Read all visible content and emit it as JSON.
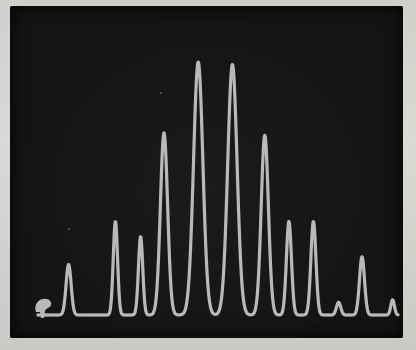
{
  "scene": {
    "subject": "oscilloscope-trace",
    "trace_color": "#b9b9b9",
    "screen_color": "#141414",
    "frame_color": "#d4d4d0"
  },
  "trace": {
    "baseline": 0.0,
    "peaks": [
      {
        "pos": 0.085,
        "height": 0.2,
        "width": 0.007
      },
      {
        "pos": 0.215,
        "height": 0.37,
        "width": 0.006
      },
      {
        "pos": 0.285,
        "height": 0.31,
        "width": 0.006
      },
      {
        "pos": 0.35,
        "height": 0.72,
        "width": 0.01
      },
      {
        "pos": 0.445,
        "height": 1.0,
        "width": 0.013
      },
      {
        "pos": 0.54,
        "height": 0.99,
        "width": 0.013
      },
      {
        "pos": 0.63,
        "height": 0.71,
        "width": 0.01
      },
      {
        "pos": 0.697,
        "height": 0.37,
        "width": 0.007
      },
      {
        "pos": 0.765,
        "height": 0.37,
        "width": 0.007
      },
      {
        "pos": 0.835,
        "height": 0.05,
        "width": 0.006
      },
      {
        "pos": 0.9,
        "height": 0.23,
        "width": 0.007
      },
      {
        "pos": 0.985,
        "height": 0.06,
        "width": 0.005
      }
    ]
  }
}
